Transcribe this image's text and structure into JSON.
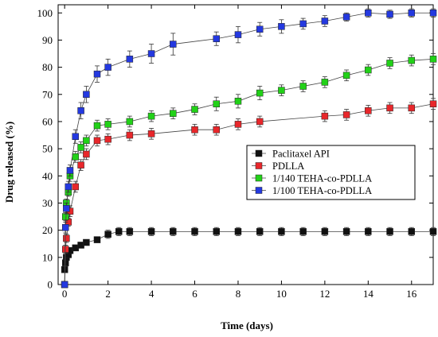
{
  "chart_data": {
    "type": "scatter",
    "xlabel": "Time (days)",
    "ylabel": "Drug released (%)",
    "xlim": [
      -0.3,
      17
    ],
    "ylim": [
      0,
      103
    ],
    "xticks": [
      0,
      2,
      4,
      6,
      8,
      10,
      12,
      14,
      16
    ],
    "yticks": [
      0,
      10,
      20,
      30,
      40,
      50,
      60,
      70,
      80,
      90,
      100
    ],
    "grid": false,
    "legend_position": "center-right",
    "series": [
      {
        "name": "Paclitaxel API",
        "color": "#111111",
        "marker": "square",
        "points": [
          [
            0,
            5.5
          ],
          [
            0.04,
            8
          ],
          [
            0.08,
            10
          ],
          [
            0.17,
            11
          ],
          [
            0.25,
            12.5
          ],
          [
            0.5,
            13.5
          ],
          [
            0.75,
            14.5
          ],
          [
            1,
            15.5
          ],
          [
            1.5,
            16.5
          ],
          [
            2,
            18.5
          ],
          [
            2.5,
            19.5
          ],
          [
            3,
            19.5
          ],
          [
            4,
            19.5
          ],
          [
            5,
            19.5
          ],
          [
            6,
            19.5
          ],
          [
            7,
            19.5
          ],
          [
            8,
            19.5
          ],
          [
            9,
            19.5
          ],
          [
            10,
            19.5
          ],
          [
            11,
            19.5
          ],
          [
            12,
            19.5
          ],
          [
            13,
            19.5
          ],
          [
            14,
            19.5
          ],
          [
            15,
            19.5
          ],
          [
            16,
            19.5
          ],
          [
            17,
            19.5
          ]
        ],
        "errors": [
          1,
          1,
          1,
          1,
          1,
          1,
          1,
          1,
          1,
          1.5,
          1.5,
          1.5,
          1.5,
          1.5,
          1.5,
          1.5,
          1.5,
          1.5,
          1.5,
          1.5,
          1.5,
          1.5,
          1.5,
          1.5,
          1.5,
          1.5
        ]
      },
      {
        "name": "PDLLA",
        "color": "#e8272b",
        "marker": "square",
        "points": [
          [
            0,
            0
          ],
          [
            0.04,
            13
          ],
          [
            0.08,
            17
          ],
          [
            0.17,
            23
          ],
          [
            0.25,
            27
          ],
          [
            0.5,
            36
          ],
          [
            0.75,
            44
          ],
          [
            1,
            48
          ],
          [
            1.5,
            53
          ],
          [
            2,
            53.5
          ],
          [
            3,
            55
          ],
          [
            4,
            55.5
          ],
          [
            6,
            57
          ],
          [
            7,
            57
          ],
          [
            8,
            59
          ],
          [
            9,
            60
          ],
          [
            12,
            62
          ],
          [
            13,
            62.5
          ],
          [
            14,
            64
          ],
          [
            15,
            65
          ],
          [
            16,
            65
          ],
          [
            17,
            66.5
          ]
        ],
        "errors": [
          1,
          1.5,
          1.5,
          1.5,
          2,
          2,
          2,
          2,
          2,
          2,
          2,
          2,
          2,
          2,
          2,
          2,
          2,
          2,
          2,
          2,
          2,
          2
        ]
      },
      {
        "name": "1/140 TEHA-co-PDLLA",
        "color": "#22d118",
        "marker": "square",
        "points": [
          [
            0,
            0
          ],
          [
            0.04,
            25
          ],
          [
            0.08,
            30
          ],
          [
            0.17,
            34
          ],
          [
            0.25,
            40
          ],
          [
            0.5,
            47
          ],
          [
            0.75,
            50.5
          ],
          [
            1,
            53
          ],
          [
            1.5,
            58.5
          ],
          [
            2,
            59
          ],
          [
            3,
            60
          ],
          [
            4,
            62
          ],
          [
            5,
            63
          ],
          [
            6,
            64.5
          ],
          [
            7,
            66.5
          ],
          [
            8,
            67.5
          ],
          [
            9,
            70.5
          ],
          [
            10,
            71.5
          ],
          [
            11,
            73
          ],
          [
            12,
            74.5
          ],
          [
            13,
            77
          ],
          [
            14,
            79
          ],
          [
            15,
            81.5
          ],
          [
            16,
            82.5
          ],
          [
            17,
            83
          ]
        ],
        "errors": [
          1,
          1.5,
          1.5,
          1.5,
          2,
          2,
          2,
          2,
          2,
          2,
          2,
          2,
          2,
          2,
          2.5,
          2.5,
          2.5,
          2,
          2,
          2,
          2,
          2,
          2,
          2,
          2
        ]
      },
      {
        "name": "1/100 TEHA-co-PDLLA",
        "color": "#2439e0",
        "marker": "square",
        "points": [
          [
            0,
            0
          ],
          [
            0.04,
            21
          ],
          [
            0.08,
            28
          ],
          [
            0.17,
            36
          ],
          [
            0.25,
            42
          ],
          [
            0.5,
            54.5
          ],
          [
            0.75,
            64
          ],
          [
            1,
            70
          ],
          [
            1.5,
            77.5
          ],
          [
            2,
            80
          ],
          [
            3,
            83
          ],
          [
            4,
            85
          ],
          [
            5,
            88.5
          ],
          [
            7,
            90.5
          ],
          [
            8,
            92
          ],
          [
            9,
            94
          ],
          [
            10,
            95
          ],
          [
            11,
            96
          ],
          [
            12,
            97
          ],
          [
            13,
            98.5
          ],
          [
            14,
            100
          ],
          [
            15,
            99.5
          ],
          [
            16,
            100
          ],
          [
            17,
            100
          ]
        ],
        "errors": [
          1,
          2,
          2,
          2,
          2,
          2.5,
          3,
          3,
          3,
          3,
          3,
          3.5,
          4,
          2.5,
          3,
          2.5,
          2.5,
          2,
          2,
          1.5,
          1.5,
          1.5,
          1.5,
          1.5
        ]
      }
    ]
  }
}
